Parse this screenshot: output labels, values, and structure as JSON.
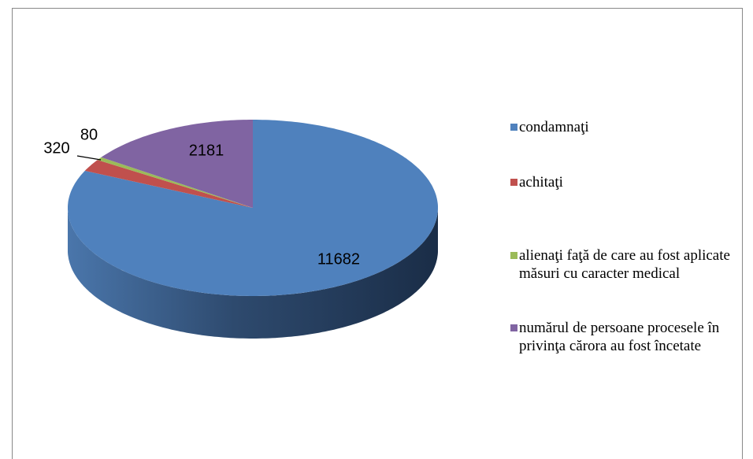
{
  "chart_data": {
    "type": "pie",
    "categories": [
      "condamnaţi",
      "achitaţi",
      "alienaţi faţă de care au fost aplicate măsuri cu caracter medical",
      "numărul de persoane procesele în privinţa cărora au fost încetate"
    ],
    "values": [
      11682,
      320,
      80,
      2181
    ],
    "colors": [
      "#4f81bd",
      "#c0504d",
      "#9bbb59",
      "#8064a2"
    ],
    "legend": "right"
  }
}
